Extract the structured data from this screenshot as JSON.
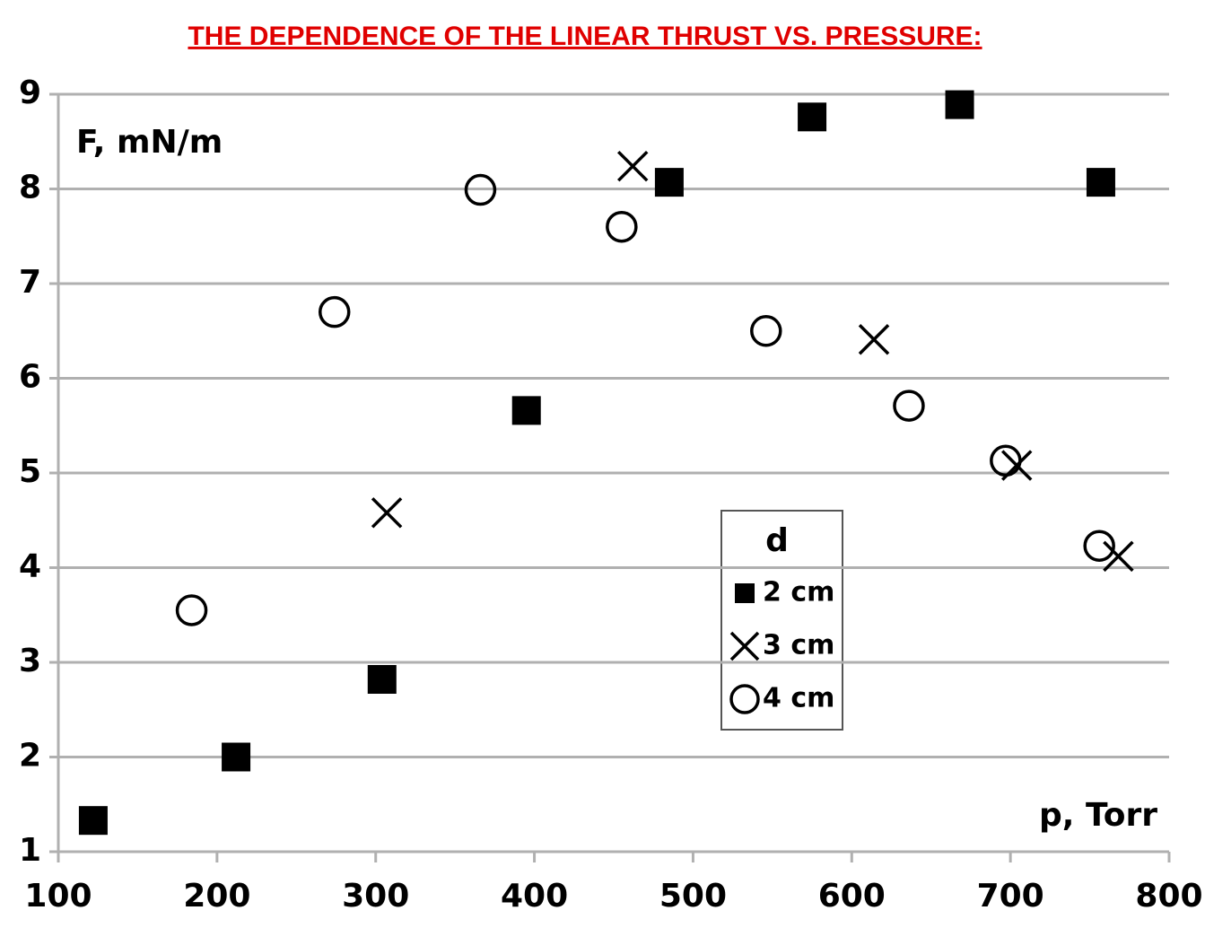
{
  "chart_data": {
    "type": "scatter",
    "title": "THE DEPENDENCE OF THE LINEAR THRUST VS. PRESSURE:",
    "y_label": "F, mN/m",
    "x_label": "p, Torr",
    "legend_title": "d",
    "xlim": [
      100,
      800
    ],
    "xticks": [
      100,
      200,
      300,
      400,
      500,
      600,
      700,
      800
    ],
    "ylim": [
      1,
      9
    ],
    "yticks": [
      1,
      2,
      3,
      4,
      5,
      6,
      7,
      8,
      9
    ],
    "grid": true,
    "series": [
      {
        "name": "2 cm",
        "marker": "square",
        "color": "#000000",
        "x": [
          122,
          212,
          304,
          395,
          485,
          575,
          668,
          757
        ],
        "values": [
          1.33,
          2.0,
          2.82,
          5.66,
          8.07,
          8.76,
          8.89,
          8.07
        ]
      },
      {
        "name": "3 cm",
        "marker": "x",
        "color": "#000000",
        "x": [
          307,
          462,
          614,
          704,
          768
        ],
        "values": [
          4.58,
          8.24,
          6.41,
          5.08,
          4.12
        ]
      },
      {
        "name": "4 cm",
        "marker": "circle",
        "color": "#000000",
        "x": [
          184,
          274,
          366,
          455,
          546,
          636,
          697,
          756
        ],
        "values": [
          3.55,
          6.7,
          7.99,
          7.6,
          6.5,
          5.71,
          5.13,
          4.23
        ]
      }
    ]
  }
}
